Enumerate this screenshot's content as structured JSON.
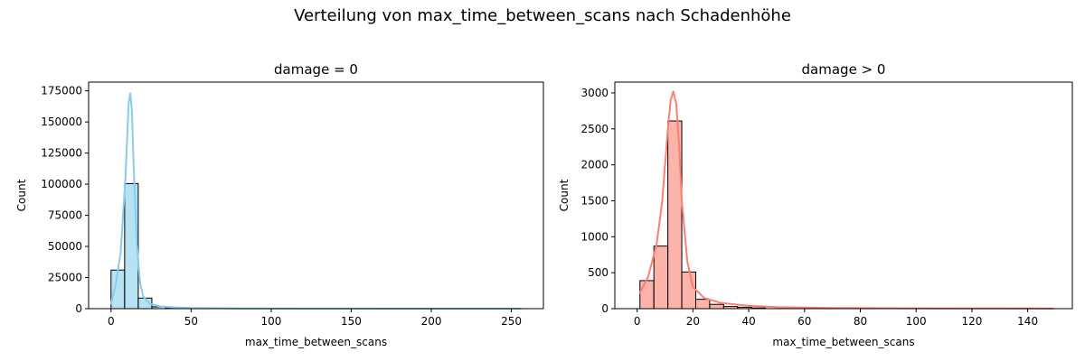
{
  "suptitle": "Verteilung von max_time_between_scans nach Schadenhöhe",
  "chart_data": [
    {
      "type": "bar",
      "subtype": "histogram-with-kde",
      "title": "damage = 0",
      "xlabel": "max_time_between_scans",
      "ylabel": "Count",
      "xlim": [
        -14,
        270
      ],
      "ylim": [
        0,
        182000
      ],
      "xticks": [
        0,
        50,
        100,
        150,
        200,
        250
      ],
      "yticks": [
        0,
        25000,
        50000,
        75000,
        100000,
        125000,
        150000,
        175000
      ],
      "bar_color": "#87ceeb",
      "line_color": "#87ceeb",
      "bins": [
        {
          "x0": 0,
          "x1": 8.5,
          "count": 31000
        },
        {
          "x0": 8.5,
          "x1": 17,
          "count": 100500
        },
        {
          "x0": 17,
          "x1": 25.5,
          "count": 8500
        },
        {
          "x0": 25.5,
          "x1": 34,
          "count": 1500
        },
        {
          "x0": 34,
          "x1": 42.5,
          "count": 300
        },
        {
          "x0": 42.5,
          "x1": 51,
          "count": 100
        }
      ],
      "kde": {
        "x": [
          0,
          3,
          6,
          9,
          11,
          12,
          13,
          14,
          16,
          18,
          20,
          24,
          30,
          40,
          50,
          80,
          120,
          180,
          256
        ],
        "y": [
          4000,
          20000,
          45000,
          105000,
          165000,
          173000,
          160000,
          120000,
          55000,
          22000,
          10000,
          4000,
          2000,
          1000,
          500,
          200,
          80,
          40,
          10
        ]
      }
    },
    {
      "type": "bar",
      "subtype": "histogram-with-kde",
      "title": "damage > 0",
      "xlabel": "max_time_between_scans",
      "ylabel": "Count",
      "xlim": [
        -8,
        156
      ],
      "ylim": [
        0,
        3150
      ],
      "xticks": [
        0,
        20,
        40,
        60,
        80,
        100,
        120,
        140
      ],
      "yticks": [
        0,
        500,
        1000,
        1500,
        2000,
        2500,
        3000
      ],
      "bar_color": "#fa8072",
      "line_color": "#fa8072",
      "bins": [
        {
          "x0": 1,
          "x1": 6,
          "count": 390
        },
        {
          "x0": 6,
          "x1": 11,
          "count": 870
        },
        {
          "x0": 11,
          "x1": 16,
          "count": 2610
        },
        {
          "x0": 16,
          "x1": 21,
          "count": 510
        },
        {
          "x0": 21,
          "x1": 26,
          "count": 130
        },
        {
          "x0": 26,
          "x1": 31,
          "count": 60
        },
        {
          "x0": 31,
          "x1": 36,
          "count": 30
        },
        {
          "x0": 36,
          "x1": 41,
          "count": 20
        },
        {
          "x0": 41,
          "x1": 46,
          "count": 10
        }
      ],
      "kde": {
        "x": [
          1,
          4,
          7,
          9,
          11,
          12,
          13,
          14,
          15,
          16,
          18,
          20,
          24,
          30,
          40,
          50,
          70,
          100,
          149
        ],
        "y": [
          220,
          450,
          900,
          1500,
          2500,
          2900,
          3020,
          2850,
          2300,
          1500,
          650,
          300,
          150,
          80,
          40,
          20,
          10,
          5,
          2
        ]
      }
    }
  ]
}
